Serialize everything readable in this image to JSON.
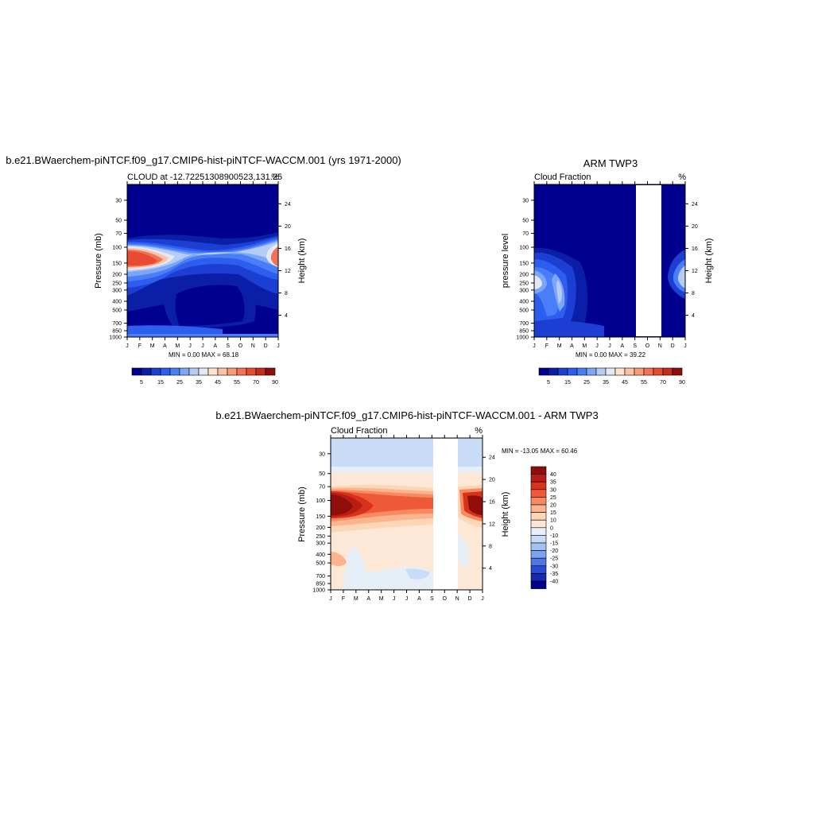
{
  "panel_model": {
    "title": "b.e21.BWaerchem-piNTCF.f09_g17.CMIP6-hist-piNTCF-WACCM.001 (yrs 1971-2000)",
    "left_label": "CLOUD at -12.72251308900523,131.25",
    "right_label": "%",
    "ylabel": "Pressure (mb)",
    "ylabel_right": "Height (km)",
    "stats": "MIN =   0.00 MAX =  68.18"
  },
  "panel_obs": {
    "title": "ARM TWP3",
    "left_label": "Cloud Fraction",
    "right_label": "%",
    "ylabel": "pressure level",
    "ylabel_right": "Height (km)",
    "stats": "MIN =   0.00 MAX =  39.22"
  },
  "panel_diff": {
    "title": "b.e21.BWaerchem-piNTCF.f09_g17.CMIP6-hist-piNTCF-WACCM.001 - ARM TWP3",
    "left_label": "Cloud Fraction",
    "right_label": "%",
    "ylabel": "Pressure (mb)",
    "ylabel_right": "Height (km)",
    "stats": "MIN = -13.05 MAX =  60.46"
  },
  "chart_data": [
    {
      "type": "heatmap",
      "title": "b.e21.BWaerchem-piNTCF.f09_g17.CMIP6-hist-piNTCF-WACCM.001 (yrs 1971-2000)",
      "subtitle": "CLOUD at -12.72251308900523,131.25",
      "x_ticks": [
        "J",
        "F",
        "M",
        "A",
        "M",
        "J",
        "J",
        "A",
        "S",
        "O",
        "N",
        "D",
        "J"
      ],
      "y_ticks": [
        "30",
        "50",
        "70",
        "100",
        "150",
        "200",
        "250",
        "300",
        "400",
        "500",
        "700",
        "850",
        "1000"
      ],
      "y2_ticks": [
        "24",
        "20",
        "16",
        "12",
        "8",
        "4"
      ],
      "ylabel": "Pressure (mb)",
      "y2label": "Height (km)",
      "ylim": [
        1000,
        20
      ],
      "y_scale": "log",
      "stats": "MIN =   0.00 MAX =  68.18",
      "colorbar_labels": [
        "5",
        "15",
        "25",
        "35",
        "45",
        "55",
        "70",
        "90"
      ],
      "colorbar_orientation": "horizontal"
    },
    {
      "type": "heatmap",
      "title": "ARM TWP3",
      "subtitle": "Cloud Fraction",
      "x_ticks": [
        "J",
        "F",
        "M",
        "A",
        "M",
        "J",
        "J",
        "A",
        "S",
        "O",
        "N",
        "D",
        "J"
      ],
      "y_ticks": [
        "30",
        "50",
        "70",
        "100",
        "150",
        "200",
        "250",
        "300",
        "400",
        "500",
        "700",
        "850",
        "1000"
      ],
      "y2_ticks": [
        "24",
        "20",
        "16",
        "12",
        "8",
        "4"
      ],
      "ylabel": "pressure level",
      "y2label": "Height (km)",
      "ylim": [
        1000,
        20
      ],
      "y_scale": "log",
      "missing_months": [
        "S-N"
      ],
      "stats": "MIN =   0.00 MAX =  39.22",
      "colorbar_labels": [
        "5",
        "15",
        "25",
        "35",
        "45",
        "55",
        "70",
        "90"
      ],
      "colorbar_orientation": "horizontal"
    },
    {
      "type": "heatmap",
      "title": "b.e21.BWaerchem-piNTCF.f09_g17.CMIP6-hist-piNTCF-WACCM.001 - ARM TWP3",
      "subtitle": "Cloud Fraction",
      "x_ticks": [
        "J",
        "F",
        "M",
        "A",
        "M",
        "J",
        "J",
        "A",
        "S",
        "O",
        "N",
        "D",
        "J"
      ],
      "y_ticks": [
        "30",
        "50",
        "70",
        "100",
        "150",
        "200",
        "250",
        "300",
        "400",
        "500",
        "700",
        "850",
        "1000"
      ],
      "y2_ticks": [
        "24",
        "20",
        "16",
        "12",
        "8",
        "4"
      ],
      "ylabel": "Pressure (mb)",
      "y2label": "Height (km)",
      "ylim": [
        1000,
        20
      ],
      "y_scale": "log",
      "missing_months": [
        "S-N"
      ],
      "stats": "MIN = -13.05 MAX =  60.46",
      "colorbar_labels": [
        "40",
        "35",
        "30",
        "25",
        "20",
        "15",
        "10",
        "0",
        "-10",
        "-15",
        "-20",
        "-25",
        "-30",
        "-35",
        "-40"
      ],
      "colorbar_orientation": "vertical"
    }
  ],
  "colors": {
    "seq": [
      "#00008f",
      "#0a1ea8",
      "#1c3ed2",
      "#2e5ef0",
      "#4a7ef8",
      "#7ea6f8",
      "#b4ccf6",
      "#e2e8f4",
      "#fde2cc",
      "#fcc2a4",
      "#fa9a78",
      "#f57054",
      "#e84a32",
      "#c82a1c",
      "#8f0e0a"
    ],
    "div": [
      "#8f0e0a",
      "#b81c12",
      "#d8321c",
      "#ee5a38",
      "#f88a62",
      "#fbb48e",
      "#fdd6b8",
      "#fde8d8",
      "#e6eef8",
      "#c8dcf6",
      "#a2c2f4",
      "#7aa2f0",
      "#4e76e6",
      "#2a4ad4",
      "#1428b0",
      "#00008f"
    ]
  }
}
